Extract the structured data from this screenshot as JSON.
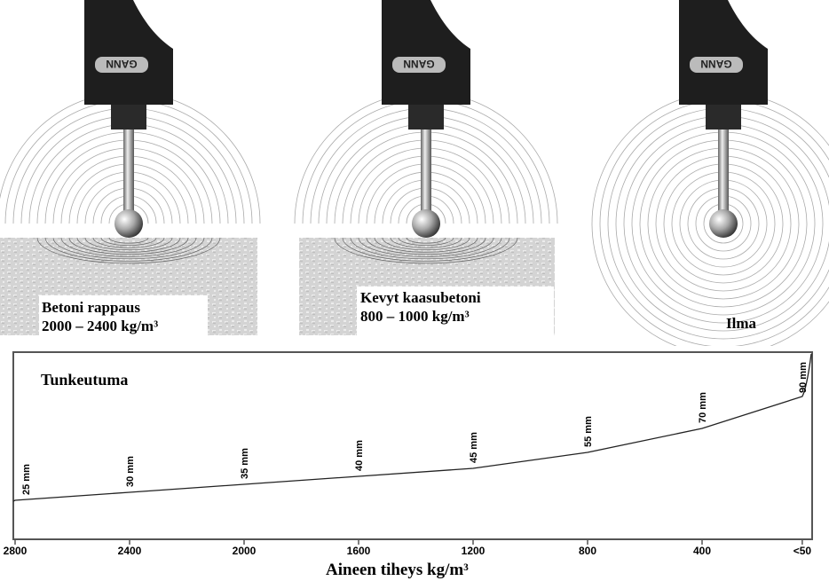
{
  "probe": {
    "logo_text": "GANN"
  },
  "panels": [
    {
      "material": "Betoni rappaus",
      "density": "2000 – 2400 kg/m³"
    },
    {
      "material": "Kevyt kaasubetoni",
      "density": "800 – 1000 kg/m³"
    },
    {
      "material": "Ilma"
    }
  ],
  "chart_data": {
    "type": "line",
    "title": "",
    "ylabel": "Tunkeutuma",
    "xlabel": "Aineen tiheys kg/m³",
    "x_reversed": true,
    "x_ticks": [
      "2800",
      "2400",
      "2000",
      "1600",
      "1200",
      "800",
      "400",
      "<50"
    ],
    "x_tick_values": [
      2800,
      2400,
      2000,
      1600,
      1200,
      800,
      400,
      50
    ],
    "x": [
      2800,
      2400,
      2000,
      1600,
      1200,
      800,
      400,
      50
    ],
    "y": [
      25,
      30,
      35,
      40,
      45,
      55,
      70,
      90
    ],
    "point_labels": [
      "25 mm",
      "30 mm",
      "35 mm",
      "40 mm",
      "45 mm",
      "55 mm",
      "70 mm",
      "90 mm"
    ],
    "grid": false,
    "colors": {
      "line": "#222222",
      "frame": "#555555"
    }
  }
}
